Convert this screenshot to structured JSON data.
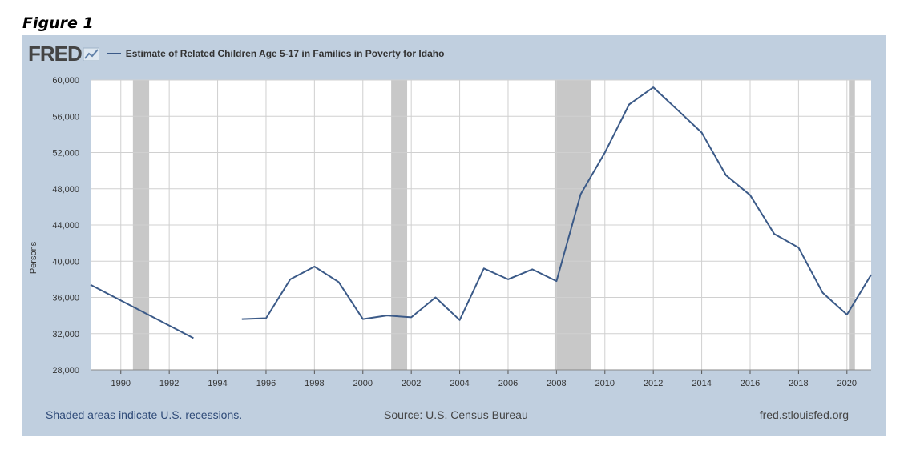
{
  "figure_caption": "Figure 1",
  "header": {
    "logo_text": "FRED",
    "logo_icon": "chart-mark-icon",
    "legend_label": "Estimate of Related Children Age 5-17 in Families in Poverty for Idaho"
  },
  "footer": {
    "recession_note": "Shaded areas indicate U.S. recessions.",
    "source": "Source: U.S. Census Bureau",
    "site": "fred.stlouisfed.org"
  },
  "colors": {
    "panel_bg": "#c0cfdf",
    "line": "#3b5a88",
    "recession": "#c8c8c8",
    "grid": "#d0d0d0"
  },
  "chart_data": {
    "type": "line",
    "title": "",
    "xlabel": "",
    "ylabel": "Persons",
    "xlim": [
      1988.75,
      2021.0
    ],
    "ylim": [
      28000,
      60000
    ],
    "yticks": [
      28000,
      32000,
      36000,
      40000,
      44000,
      48000,
      52000,
      56000,
      60000
    ],
    "ytick_labels": [
      "28,000",
      "32,000",
      "36,000",
      "40,000",
      "44,000",
      "48,000",
      "52,000",
      "56,000",
      "60,000"
    ],
    "xticks": [
      1990,
      1992,
      1994,
      1996,
      1998,
      2000,
      2002,
      2004,
      2006,
      2008,
      2010,
      2012,
      2014,
      2016,
      2018,
      2020
    ],
    "xtick_labels": [
      "1990",
      "1992",
      "1994",
      "1996",
      "1998",
      "2000",
      "2002",
      "2004",
      "2006",
      "2008",
      "2010",
      "2012",
      "2014",
      "2016",
      "2018",
      "2020"
    ],
    "grid": true,
    "recessions": [
      [
        1990.5,
        1991.17
      ],
      [
        2001.17,
        2001.83
      ],
      [
        2007.92,
        2009.42
      ],
      [
        2020.08,
        2020.33
      ]
    ],
    "series": [
      {
        "name": "Estimate of Related Children Age 5-17 in Families in Poverty for Idaho",
        "segments": [
          [
            [
              1988.75,
              37400
            ],
            [
              1993,
              31500
            ]
          ],
          [
            [
              1995,
              33600
            ],
            [
              1996,
              33700
            ],
            [
              1997,
              38000
            ],
            [
              1998,
              39400
            ],
            [
              1999,
              37700
            ],
            [
              2000,
              33600
            ],
            [
              2001,
              34000
            ],
            [
              2002,
              33800
            ],
            [
              2003,
              36000
            ],
            [
              2004,
              33500
            ],
            [
              2005,
              39200
            ],
            [
              2006,
              38000
            ],
            [
              2007,
              39100
            ],
            [
              2008,
              37800
            ],
            [
              2009,
              47400
            ],
            [
              2010,
              52000
            ],
            [
              2011,
              57300
            ],
            [
              2012,
              59200
            ],
            [
              2013,
              56700
            ],
            [
              2014,
              54200
            ],
            [
              2015,
              49500
            ],
            [
              2016,
              47300
            ],
            [
              2017,
              43000
            ],
            [
              2018,
              41500
            ],
            [
              2019,
              36500
            ],
            [
              2020,
              34100
            ],
            [
              2021,
              38500
            ]
          ]
        ]
      }
    ]
  }
}
